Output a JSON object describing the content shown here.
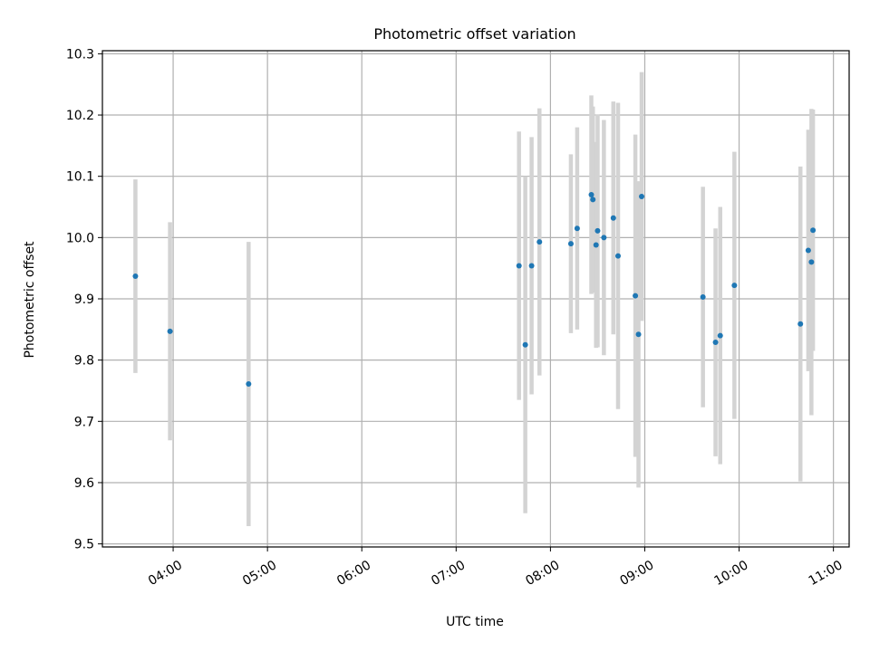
{
  "chart_data": {
    "type": "scatter",
    "title": "Photometric offset variation",
    "xlabel": "UTC time",
    "ylabel": "Photometric offset",
    "x_unit": "UTC time (HH:MM)",
    "xlim": [
      "03:15",
      "11:10"
    ],
    "ylim": [
      9.495,
      10.305
    ],
    "x_ticks": [
      "04:00",
      "05:00",
      "06:00",
      "07:00",
      "08:00",
      "09:00",
      "10:00",
      "11:00"
    ],
    "y_ticks": [
      "9.5",
      "9.6",
      "9.7",
      "9.8",
      "9.9",
      "10.0",
      "10.1",
      "10.2",
      "10.3"
    ],
    "grid": true,
    "marker_color": "#1f77b4",
    "errorbar_color": "#d3d3d3",
    "series": [
      {
        "points": [
          {
            "x": "03:36",
            "y": 9.937,
            "yerr": 0.158
          },
          {
            "x": "03:58",
            "y": 9.847,
            "yerr": 0.178
          },
          {
            "x": "04:48",
            "y": 9.761,
            "yerr": 0.232
          },
          {
            "x": "07:40",
            "y": 9.954,
            "yerr": 0.219
          },
          {
            "x": "07:44",
            "y": 9.825,
            "yerr": 0.275
          },
          {
            "x": "07:48",
            "y": 9.954,
            "yerr": 0.21
          },
          {
            "x": "07:53",
            "y": 9.993,
            "yerr": 0.218
          },
          {
            "x": "08:13",
            "y": 9.99,
            "yerr": 0.146
          },
          {
            "x": "08:17",
            "y": 10.015,
            "yerr": 0.165
          },
          {
            "x": "08:26",
            "y": 10.07,
            "yerr": 0.162
          },
          {
            "x": "08:27",
            "y": 10.062,
            "yerr": 0.152
          },
          {
            "x": "08:29",
            "y": 9.988,
            "yerr": 0.168
          },
          {
            "x": "08:30",
            "y": 10.011,
            "yerr": 0.19
          },
          {
            "x": "08:34",
            "y": 10.0,
            "yerr": 0.192
          },
          {
            "x": "08:40",
            "y": 10.032,
            "yerr": 0.19
          },
          {
            "x": "08:43",
            "y": 9.97,
            "yerr": 0.25
          },
          {
            "x": "08:54",
            "y": 9.905,
            "yerr": 0.263
          },
          {
            "x": "08:56",
            "y": 9.842,
            "yerr": 0.25
          },
          {
            "x": "08:58",
            "y": 10.067,
            "yerr": 0.203
          },
          {
            "x": "09:37",
            "y": 9.903,
            "yerr": 0.18
          },
          {
            "x": "09:45",
            "y": 9.829,
            "yerr": 0.186
          },
          {
            "x": "09:48",
            "y": 9.84,
            "yerr": 0.21
          },
          {
            "x": "09:57",
            "y": 9.922,
            "yerr": 0.218
          },
          {
            "x": "10:39",
            "y": 9.859,
            "yerr": 0.257
          },
          {
            "x": "10:44",
            "y": 9.979,
            "yerr": 0.197
          },
          {
            "x": "10:46",
            "y": 9.96,
            "yerr": 0.25
          },
          {
            "x": "10:47",
            "y": 10.012,
            "yerr": 0.197
          }
        ]
      }
    ]
  }
}
